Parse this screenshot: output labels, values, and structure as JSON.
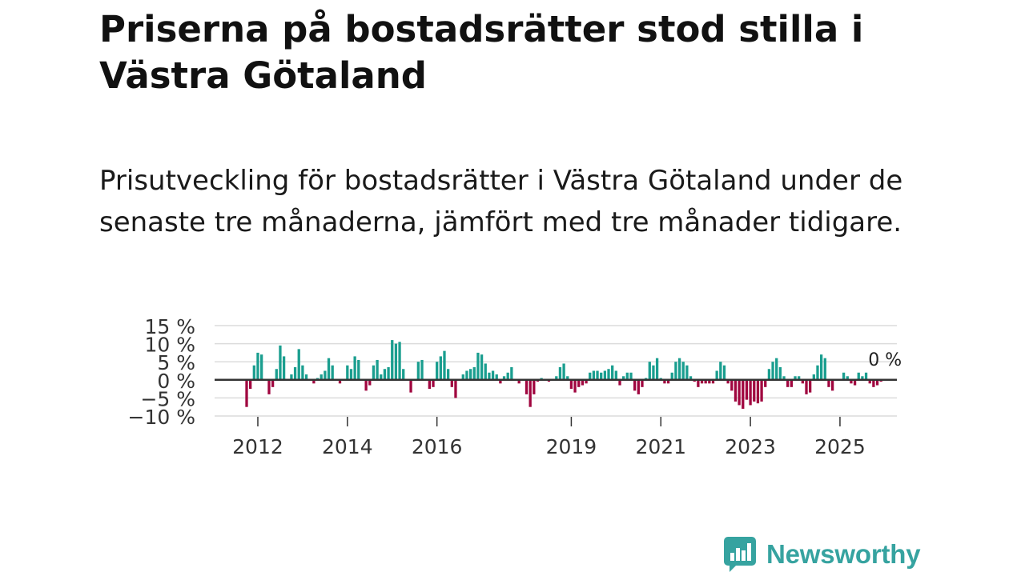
{
  "header": {
    "title": "Priserna på bostadsrätter stod stilla i Västra Götaland",
    "subtitle": "Prisutveckling för bostadsrätter i Västra Götaland under de senaste tre månaderna, jämfört med tre månader tidigare."
  },
  "brand": {
    "name": "Newsworthy",
    "color": "#36a3a0",
    "icon": "newsworthy-logo-icon"
  },
  "chart_data": {
    "type": "bar",
    "title": "",
    "xlabel": "",
    "ylabel": "",
    "ylim": [
      -10,
      15
    ],
    "y_ticks": [
      -10,
      -5,
      0,
      5,
      10,
      15
    ],
    "y_tick_labels": [
      "−10 %",
      "−5 %",
      "0 %",
      "5 %",
      "10 %",
      "15 %"
    ],
    "x_ticks": [
      "2012",
      "2014",
      "2016",
      "2019",
      "2021",
      "2023",
      "2025"
    ],
    "x_start": "2011-10",
    "frequency": "monthly",
    "last_value_label": "0 %",
    "positive_color": "#1a9e8f",
    "negative_color": "#a0063f",
    "zero_line_color": "#333333",
    "grid": true,
    "values": [
      -7.5,
      -2.5,
      4,
      7.5,
      7,
      0,
      -4,
      -2,
      3,
      9.5,
      6.5,
      0,
      1.5,
      3.5,
      8.5,
      4,
      1.5,
      0,
      -1,
      0.5,
      1.5,
      2.5,
      6,
      4,
      0,
      -1,
      0,
      4,
      3,
      6.5,
      5.5,
      0,
      -3,
      -1.5,
      4,
      5.5,
      1.5,
      3,
      3.5,
      11,
      10,
      10.5,
      3,
      0,
      -3.5,
      0,
      5,
      5.5,
      0,
      -2.5,
      -2,
      5,
      6.5,
      8,
      3,
      -2,
      -5,
      0,
      1.5,
      2.5,
      3,
      3.5,
      7.5,
      7,
      4.5,
      2,
      2.5,
      1.5,
      -1,
      1,
      2,
      3.5,
      0,
      -1,
      0,
      -4,
      -7.5,
      -4,
      -0.5,
      0.5,
      0,
      -0.5,
      0,
      1,
      3.5,
      4.5,
      1,
      -2.5,
      -3.5,
      -2,
      -1.5,
      -1,
      2,
      2.5,
      2.5,
      2,
      2.5,
      3,
      4,
      2.5,
      -1.5,
      1,
      2,
      2,
      -3,
      -4,
      -2,
      0.5,
      5,
      4,
      6,
      0.5,
      -1,
      -1,
      2,
      5,
      6,
      5,
      4,
      1,
      -0.5,
      -2,
      -1,
      -1,
      -1,
      -1,
      2.5,
      5,
      4,
      -1,
      -3,
      -6,
      -7,
      -8,
      -5.5,
      -7,
      -6,
      -6.5,
      -6,
      -2,
      3,
      5,
      6,
      3.5,
      1,
      -2,
      -2,
      1,
      1,
      -1,
      -4,
      -3.5,
      1.5,
      4,
      7,
      6,
      -2,
      -3,
      0,
      0,
      2,
      1,
      -1,
      -1.5,
      2,
      1,
      2,
      -1,
      -2,
      -1.5,
      -0.5
    ]
  }
}
